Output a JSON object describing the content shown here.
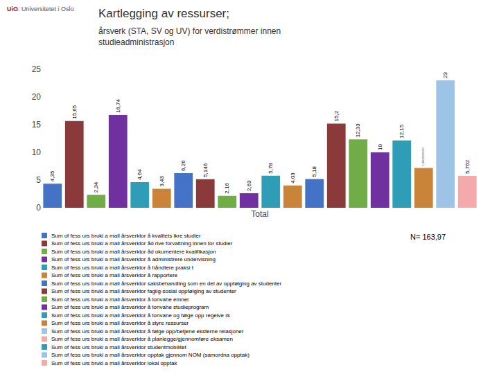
{
  "chart_data": {
    "type": "bar",
    "title": "Kartlegging av ressurser;",
    "subtitle": "årsverk (STA, SV og UV) for verdistrømmer innen\nstudieadministrasjon",
    "xlabel": "Total",
    "categories": [
      null,
      null,
      null,
      null,
      null,
      null,
      null,
      null,
      null,
      null,
      null,
      null,
      null,
      null,
      null,
      null,
      null,
      null,
      null,
      null
    ],
    "values": [
      4.35,
      15.65,
      2.34,
      16.74,
      4.64,
      3.43,
      6.26,
      5.146,
      2.16,
      2.63,
      5.78,
      4.03,
      5.18,
      15.2,
      12.33,
      10.0,
      12.15,
      7.195,
      23.0,
      5.762
    ],
    "value_labels": [
      "4,35",
      "15,65",
      "2,34",
      "16,74",
      "4,64",
      "3,43",
      "6,26",
      "5,146",
      "2,16",
      "2,63",
      "5,78",
      "4,03",
      "5,18",
      "15,2",
      "12,33",
      "10",
      "12,15",
      "7,19499999999997",
      "23",
      "5,762"
    ],
    "colors": [
      "#4472C4",
      "#8B3A3A",
      "#70AD47",
      "#7030A0",
      "#2E9DB5",
      "#C9843A",
      "#4472C4",
      "#8B3A3A",
      "#70AD47",
      "#7030A0",
      "#2E9DB5",
      "#C9843A",
      "#4472C4",
      "#8B3A3A",
      "#70AD47",
      "#7030A0",
      "#2E9DB5",
      "#C9843A",
      "#9DC3E6",
      "#F4AAAA"
    ],
    "data_labels": true,
    "ylim": [
      0,
      25
    ],
    "yticks": [
      0,
      5,
      10,
      15,
      20,
      25
    ],
    "grid": false,
    "legend_entries": [
      {
        "name": "Sum of fess urs bruki a mall årsverktor å kvalitets ikre studier",
        "color": "#4472C4"
      },
      {
        "name": "Sum of fess urs bruki a mall årsverktor åd rive forvaltning innen tor studier",
        "color": "#8B3A3A"
      },
      {
        "name": "Sum of fess urs bruki a mall årsverktor åd okumentere kvalifikasjon",
        "color": "#70AD47"
      },
      {
        "name": "Sum of fess urs bruki a mall årsverktor å administrere undervisning",
        "color": "#7030A0"
      },
      {
        "name": "Sum of fess urs bruki a mall årsverktor å håndtere praksi t",
        "color": "#2E9DB5"
      },
      {
        "name": "Sum of fess urs bruki a mall årsverktor å rapportere",
        "color": "#C9843A"
      },
      {
        "name": "Sum of fess urs bruki a mall årsverktor saksbehandling som en del av oppfølging av studenter",
        "color": "#4472C4"
      },
      {
        "name": "Sum of fess urs bruki a mall årsverktor faglig-sosial oppfølging av studenter",
        "color": "#8B3A3A"
      },
      {
        "name": "Sum of fess urs bruki a mall årsverktor å tonvahe emner",
        "color": "#70AD47"
      },
      {
        "name": "Sum of fess urs bruki a mall årsverktor å tonvahe studieprogram",
        "color": "#7030A0"
      },
      {
        "name": "Sum of fess urs bruki a mall årsverktor å tonvahe og følge opp regelve rk",
        "color": "#2E9DB5"
      },
      {
        "name": "Sum of fess urs bruki a mall årsverktor å styre ressurser",
        "color": "#C9843A"
      },
      {
        "name": "Sum of fess urs bruki a mall årsverktor å følge opp/betjene eksterne relasjoner",
        "color": "#9DC3E6"
      },
      {
        "name": "Sum of fess urs bruki a mall årsverktor å planlegge/gjennomføre eksamen",
        "color": "#F4AAAA"
      },
      {
        "name": "Sum of fess urs bruki a mall årsverktor studentmobilitet",
        "color": "#2E9DB5"
      },
      {
        "name": "Sum of fess urs bruki a mall årsverktor opptak gjennom NOM (samordna opptak)",
        "color": "#9DC3E6"
      },
      {
        "name": "Sum of fess urs bruki a mall årsverktor lokal opptak",
        "color": "#F4AAAA"
      }
    ],
    "annotations": [
      {
        "text": "UiO",
        "color": "#B5082E"
      },
      {
        "text": ": Universitetet i Oslo",
        "color": "#555555"
      },
      {
        "text": "N= 163,97"
      }
    ]
  }
}
